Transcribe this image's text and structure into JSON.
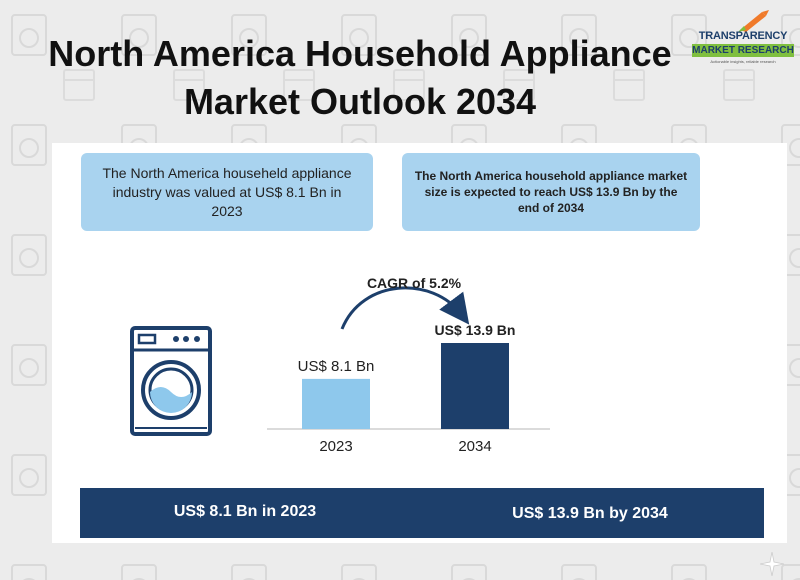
{
  "title": "North America Household Appliance Market Outlook 2034",
  "logo": {
    "name_line1": "TRANSPARENCY",
    "name_line2": "MARKET RESEARCH",
    "tagline": "Actionable insights, reliable research",
    "icon": "rocket-icon",
    "colors": {
      "blue": "#1d3f6b",
      "green": "#7fbf3f",
      "orange": "#f07a2a"
    }
  },
  "info_left": "The North America househeld appliance industry was valued at US$ 8.1 Bn in 2023",
  "info_right": "The North America household appliance market size is expected to reach US$ 13.9 Bn by the end of 2034",
  "washer_icon": "washing-machine-icon",
  "bottom_band": {
    "left": "US$ 8.1 Bn in 2023",
    "right": "US$ 13.9 Bn by 2034"
  },
  "chart_data": {
    "type": "bar",
    "categories": [
      "2023",
      "2034"
    ],
    "values": [
      8.1,
      13.9
    ],
    "data_labels": [
      "US$ 8.1 Bn",
      "US$ 13.9 Bn"
    ],
    "annotation": "CAGR of 5.2%",
    "ylim": [
      0,
      16
    ],
    "grid": false,
    "colors": [
      "#8ec8ec",
      "#1d3f6b"
    ]
  }
}
